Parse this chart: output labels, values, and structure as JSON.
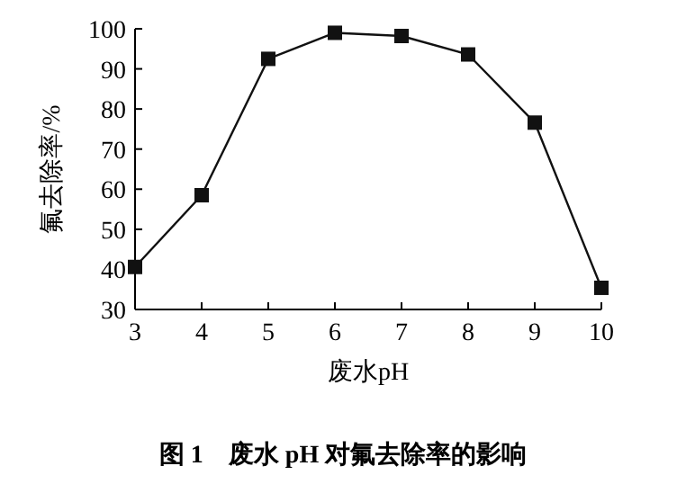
{
  "chart_data": {
    "type": "line",
    "title": "图 1　废水 pH 对氟去除率的影响",
    "xlabel": "废水pH",
    "ylabel": "氟去除率/%",
    "x": [
      3,
      4,
      5,
      6,
      7,
      8,
      9,
      10
    ],
    "series": [
      {
        "color": "#111111",
        "values": [
          40.6,
          58.5,
          92.5,
          99,
          98.2,
          93.6,
          76.6,
          35.4
        ]
      }
    ],
    "xlim": [
      3,
      10
    ],
    "xticks": [
      3,
      4,
      5,
      6,
      7,
      8,
      9,
      10
    ],
    "ylim": [
      30,
      100
    ],
    "yticks": [
      30,
      40,
      50,
      60,
      70,
      80,
      90,
      100
    ],
    "marker": "square",
    "line_style": "solid",
    "grid": false
  }
}
